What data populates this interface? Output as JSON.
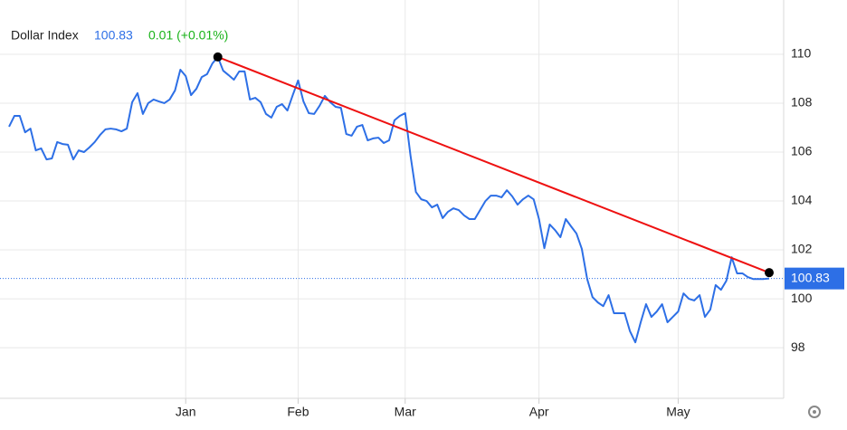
{
  "chart_data": {
    "type": "line",
    "title": "Dollar Index",
    "change": "0.01 (+0.01%)",
    "categories": [
      null,
      null,
      null,
      null,
      null,
      null,
      null,
      null,
      null,
      null,
      null,
      null,
      null,
      null,
      null,
      null,
      null,
      null,
      null,
      null,
      null,
      null,
      null,
      null,
      null,
      null,
      null,
      null,
      null,
      null,
      null,
      null,
      null,
      "Jan",
      null,
      null,
      null,
      null,
      null,
      null,
      null,
      null,
      null,
      null,
      null,
      null,
      null,
      null,
      null,
      null,
      null,
      null,
      null,
      null,
      "Feb",
      null,
      null,
      null,
      null,
      null,
      null,
      null,
      null,
      null,
      null,
      null,
      null,
      null,
      null,
      null,
      null,
      null,
      null,
      null,
      "Mar",
      null,
      null,
      null,
      null,
      null,
      null,
      null,
      null,
      null,
      null,
      null,
      null,
      null,
      null,
      null,
      null,
      null,
      null,
      null,
      null,
      null,
      null,
      null,
      null,
      "Apr",
      null,
      null,
      null,
      null,
      null,
      null,
      null,
      null,
      null,
      null,
      null,
      null,
      null,
      null,
      null,
      null,
      null,
      null,
      null,
      null,
      null,
      null,
      null,
      null,
      null,
      "May",
      null,
      null,
      null,
      null,
      null,
      null,
      null,
      null,
      null,
      null,
      null,
      null,
      null,
      null,
      null,
      null,
      null
    ],
    "series": [
      {
        "name": "Dollar Index",
        "color": "#2d6fe6",
        "values": [
          107.04,
          107.48,
          107.48,
          106.81,
          106.96,
          106.07,
          106.15,
          105.7,
          105.74,
          106.41,
          106.33,
          106.3,
          105.7,
          106.07,
          106.0,
          106.19,
          106.41,
          106.7,
          106.93,
          106.96,
          106.93,
          106.85,
          106.96,
          108.04,
          108.41,
          107.56,
          108.0,
          108.15,
          108.07,
          108.0,
          108.15,
          108.52,
          109.37,
          109.11,
          108.33,
          108.59,
          109.07,
          109.19,
          109.63,
          109.89,
          109.33,
          109.15,
          108.96,
          109.3,
          109.3,
          108.15,
          108.22,
          108.04,
          107.56,
          107.41,
          107.85,
          107.96,
          107.7,
          108.33,
          108.93,
          108.07,
          107.59,
          107.56,
          107.89,
          108.3,
          108.04,
          107.85,
          107.81,
          106.74,
          106.67,
          107.04,
          107.11,
          106.48,
          106.56,
          106.59,
          106.37,
          106.48,
          107.3,
          107.48,
          107.59,
          105.85,
          104.37,
          104.07,
          104.0,
          103.74,
          103.85,
          103.3,
          103.56,
          103.7,
          103.63,
          103.41,
          103.26,
          103.26,
          103.63,
          104.0,
          104.22,
          104.22,
          104.15,
          104.44,
          104.19,
          103.85,
          104.07,
          104.22,
          104.07,
          103.26,
          102.07,
          103.04,
          102.81,
          102.52,
          103.26,
          102.96,
          102.67,
          102.04,
          100.81,
          100.07,
          99.85,
          99.7,
          100.15,
          99.41,
          99.41,
          99.41,
          98.67,
          98.22,
          99.04,
          99.78,
          99.26,
          99.48,
          99.78,
          99.04,
          99.26,
          99.48,
          100.22,
          100.0,
          99.93,
          100.15,
          99.26,
          99.56,
          100.56,
          100.37,
          100.74,
          101.7,
          101.04,
          101.04,
          100.89,
          100.81,
          100.81,
          100.81,
          100.83
        ]
      }
    ],
    "change_color": "#1ab31a",
    "ylim": [
      95.93,
      112.22
    ],
    "yticks": [
      98,
      100,
      102,
      104,
      106,
      108,
      110
    ],
    "grid": true,
    "trendline": {
      "color": "#ee1111",
      "start": [
        39,
        109.89
      ],
      "end": [
        142,
        101.07
      ]
    }
  }
}
